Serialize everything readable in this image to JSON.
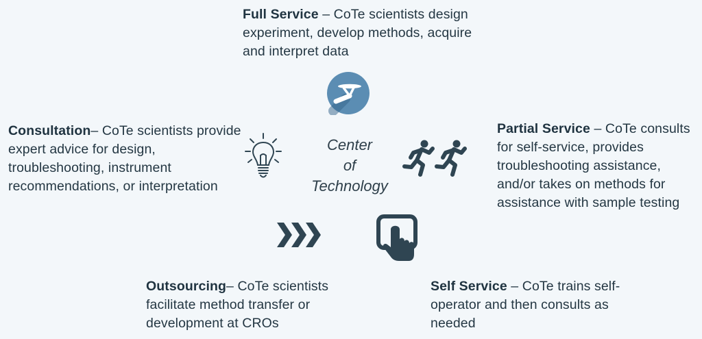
{
  "colors": {
    "background": "#f3f7fa",
    "text": "#243743",
    "icon_dark": "#2f4552",
    "icon_blue": "#5b8db3"
  },
  "center": {
    "line1": "Center",
    "line2": "of",
    "line3": "Technology"
  },
  "services": {
    "full": {
      "title": "Full Service",
      "desc": " – CoTe scientists design experiment, develop methods, acquire and interpret data",
      "icon": "serving-tray-icon"
    },
    "consultation": {
      "title": "Consultation",
      "desc": "– CoTe scientists provide expert advice for design, troubleshooting, instrument recommendations, or interpretation",
      "icon": "lightbulb-icon"
    },
    "partial": {
      "title": "Partial Service",
      "desc": " – CoTe consults for self-service, provides troubleshooting assistance, and/or takes on methods for assistance with sample testing",
      "icon": "runners-icon"
    },
    "outsourcing": {
      "title": "Outsourcing",
      "desc": "– CoTe scientists facilitate method transfer or development at CROs",
      "icon": "chevrons-right-icon"
    },
    "self": {
      "title": "Self Service",
      "desc": " – CoTe trains self-operator and then consults as needed",
      "icon": "touch-screen-icon"
    }
  }
}
